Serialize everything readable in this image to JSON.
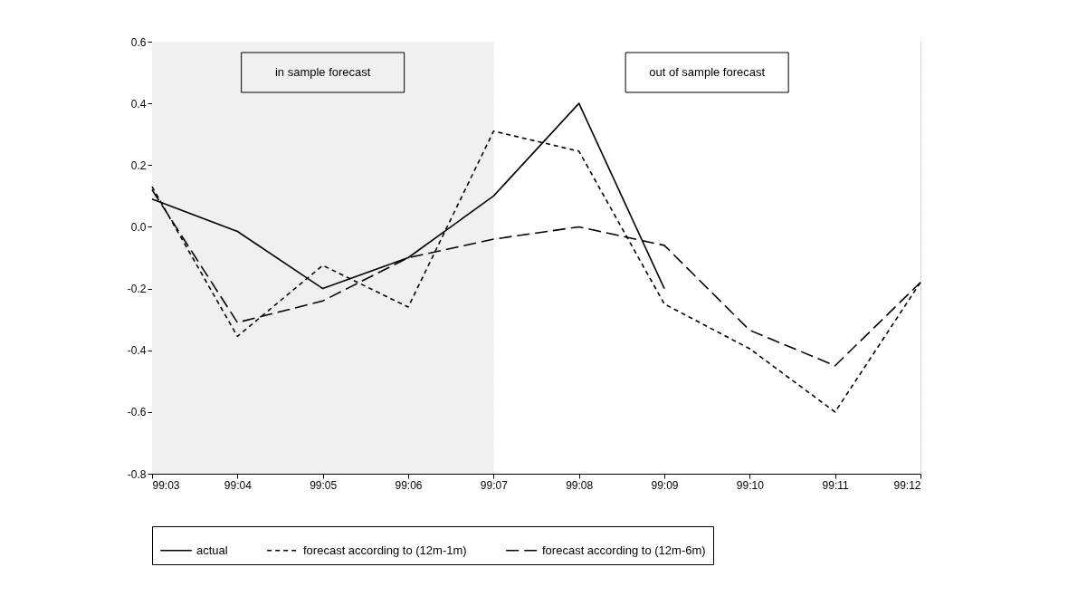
{
  "chart_data": {
    "type": "line",
    "categories": [
      "99:03",
      "99:04",
      "99:05",
      "99:06",
      "99:07",
      "99:08",
      "99:09",
      "99:10",
      "99:11",
      "99:12"
    ],
    "series": [
      {
        "name": "actual",
        "color": "#000000",
        "line_style": "solid",
        "values": [
          0.09,
          -0.015,
          -0.2,
          -0.1,
          0.1,
          0.4,
          -0.2,
          null,
          null,
          null
        ]
      },
      {
        "name": "forecast according to (12m-1m)",
        "color": "#000000",
        "line_style": "dotted",
        "values": [
          0.13,
          -0.355,
          -0.125,
          -0.26,
          0.31,
          0.245,
          -0.25,
          -0.395,
          -0.6,
          -0.18
        ]
      },
      {
        "name": "forecast according to (12m-6m)",
        "color": "#000000",
        "line_style": "dashed",
        "values": [
          0.12,
          -0.31,
          -0.24,
          -0.1,
          -0.04,
          0.0,
          -0.06,
          -0.335,
          -0.45,
          -0.18
        ]
      }
    ],
    "ylim": [
      -0.8,
      0.6
    ],
    "yticks": [
      {
        "value": -0.8,
        "label": "-0.8"
      },
      {
        "value": -0.6,
        "label": "-0.6"
      },
      {
        "value": -0.4,
        "label": "-0.4"
      },
      {
        "value": -0.2,
        "label": "-0.2"
      },
      {
        "value": 0,
        "label": "0.0"
      },
      {
        "value": 0.2,
        "label": "0.2"
      },
      {
        "value": 0.4,
        "label": "0.4"
      },
      {
        "value": 0.6,
        "label": "0.6"
      }
    ],
    "bands": [
      {
        "axis": "x",
        "from": "99:03",
        "to": "99:07",
        "label": "in sample forecast",
        "color": "#f0f0f0"
      },
      {
        "axis": "x",
        "from": "99:07",
        "to": "99:12",
        "label": "out of sample forecast",
        "color": "#ffffff"
      }
    ],
    "grid": true,
    "legend": "bottom"
  }
}
